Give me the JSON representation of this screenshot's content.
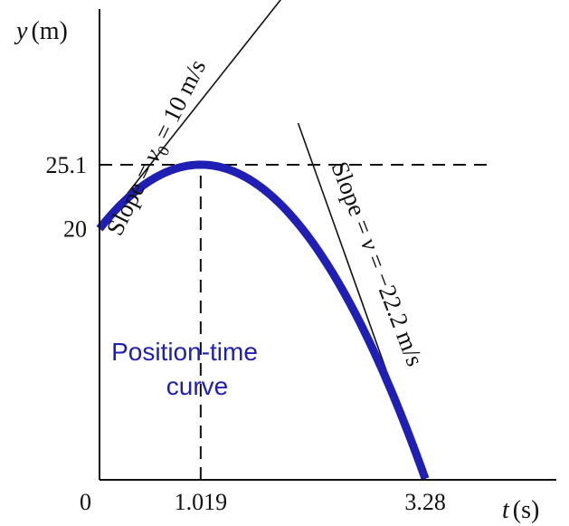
{
  "chart_data": {
    "type": "line",
    "xlabel_var": "t",
    "xlabel_unit": "(s)",
    "ylabel_var": "y",
    "ylabel_unit": "(m)",
    "origin_label": "0",
    "x_ticks": [
      {
        "value": 1.019,
        "label": "1.019"
      },
      {
        "value": 3.28,
        "label": "3.28"
      }
    ],
    "y_ticks": [
      {
        "value": 20,
        "label": "20"
      },
      {
        "value": 25.1,
        "label": "25.1"
      }
    ],
    "xlim": [
      0,
      4.6
    ],
    "ylim": [
      0,
      37.5
    ],
    "series": [
      {
        "name": "",
        "color": "#1f1fb4",
        "equation": {
          "y0": 20,
          "v0": 10,
          "a": -9.8
        },
        "t_range": [
          0,
          3.28
        ]
      }
    ],
    "curve_annotation": {
      "line1": "Position-time",
      "line2": "curve"
    },
    "tangents": [
      {
        "label": "Slope = v0 = 10 m/s",
        "label_text": "Slope = ",
        "label_var": "v",
        "label_sub": "0",
        "label_rest": " = 10 m/s",
        "slope": 10,
        "point": {
          "t": 0,
          "y": 20
        },
        "t_range": [
          0.18,
          2.0
        ]
      },
      {
        "label": "Slope = v = −22.2 m/s",
        "label_text": "Slope = ",
        "label_var": "v",
        "label_rest": " = −22.2 m/s",
        "slope": -22.2,
        "point": {
          "t": 3.28,
          "y": 0
        },
        "t_range": [
          2.0,
          3.28
        ]
      }
    ],
    "dashed_guides": [
      {
        "type": "horizontal",
        "y": 25.1,
        "t_from": 0,
        "t_to": 3.95
      },
      {
        "type": "vertical",
        "t": 1.019,
        "y_from": 0,
        "y_to": 25.1
      }
    ]
  }
}
